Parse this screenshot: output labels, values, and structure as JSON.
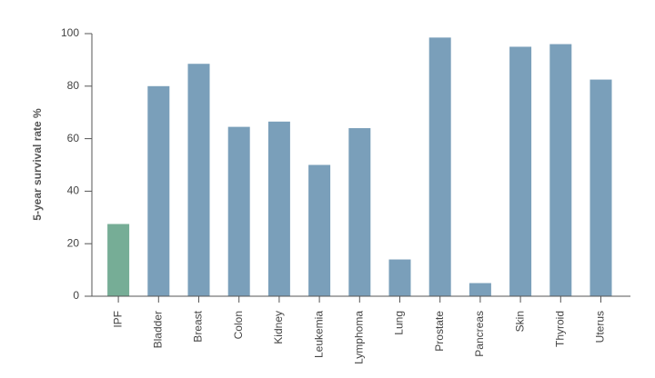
{
  "chart_data": {
    "type": "bar",
    "y_label": "5-year survival rate %",
    "categories": [
      "IPF",
      "Bladder",
      "Breast",
      "Colon",
      "Kidney",
      "Leukemia",
      "Lymphoma",
      "Lung",
      "Prostate",
      "Pancreas",
      "Skin",
      "Thyroid",
      "Uterus"
    ],
    "values": [
      27.5,
      80,
      88.5,
      64.5,
      66.5,
      50,
      64,
      14,
      98.5,
      5,
      95,
      96,
      82.5
    ],
    "colors": [
      "#76ad96",
      "#7a9fba",
      "#7a9fba",
      "#7a9fba",
      "#7a9fba",
      "#7a9fba",
      "#7a9fba",
      "#7a9fba",
      "#7a9fba",
      "#7a9fba",
      "#7a9fba",
      "#7a9fba",
      "#7a9fba"
    ],
    "ylim": [
      0,
      100
    ],
    "yticks": [
      0,
      20,
      40,
      60,
      80,
      100
    ]
  }
}
